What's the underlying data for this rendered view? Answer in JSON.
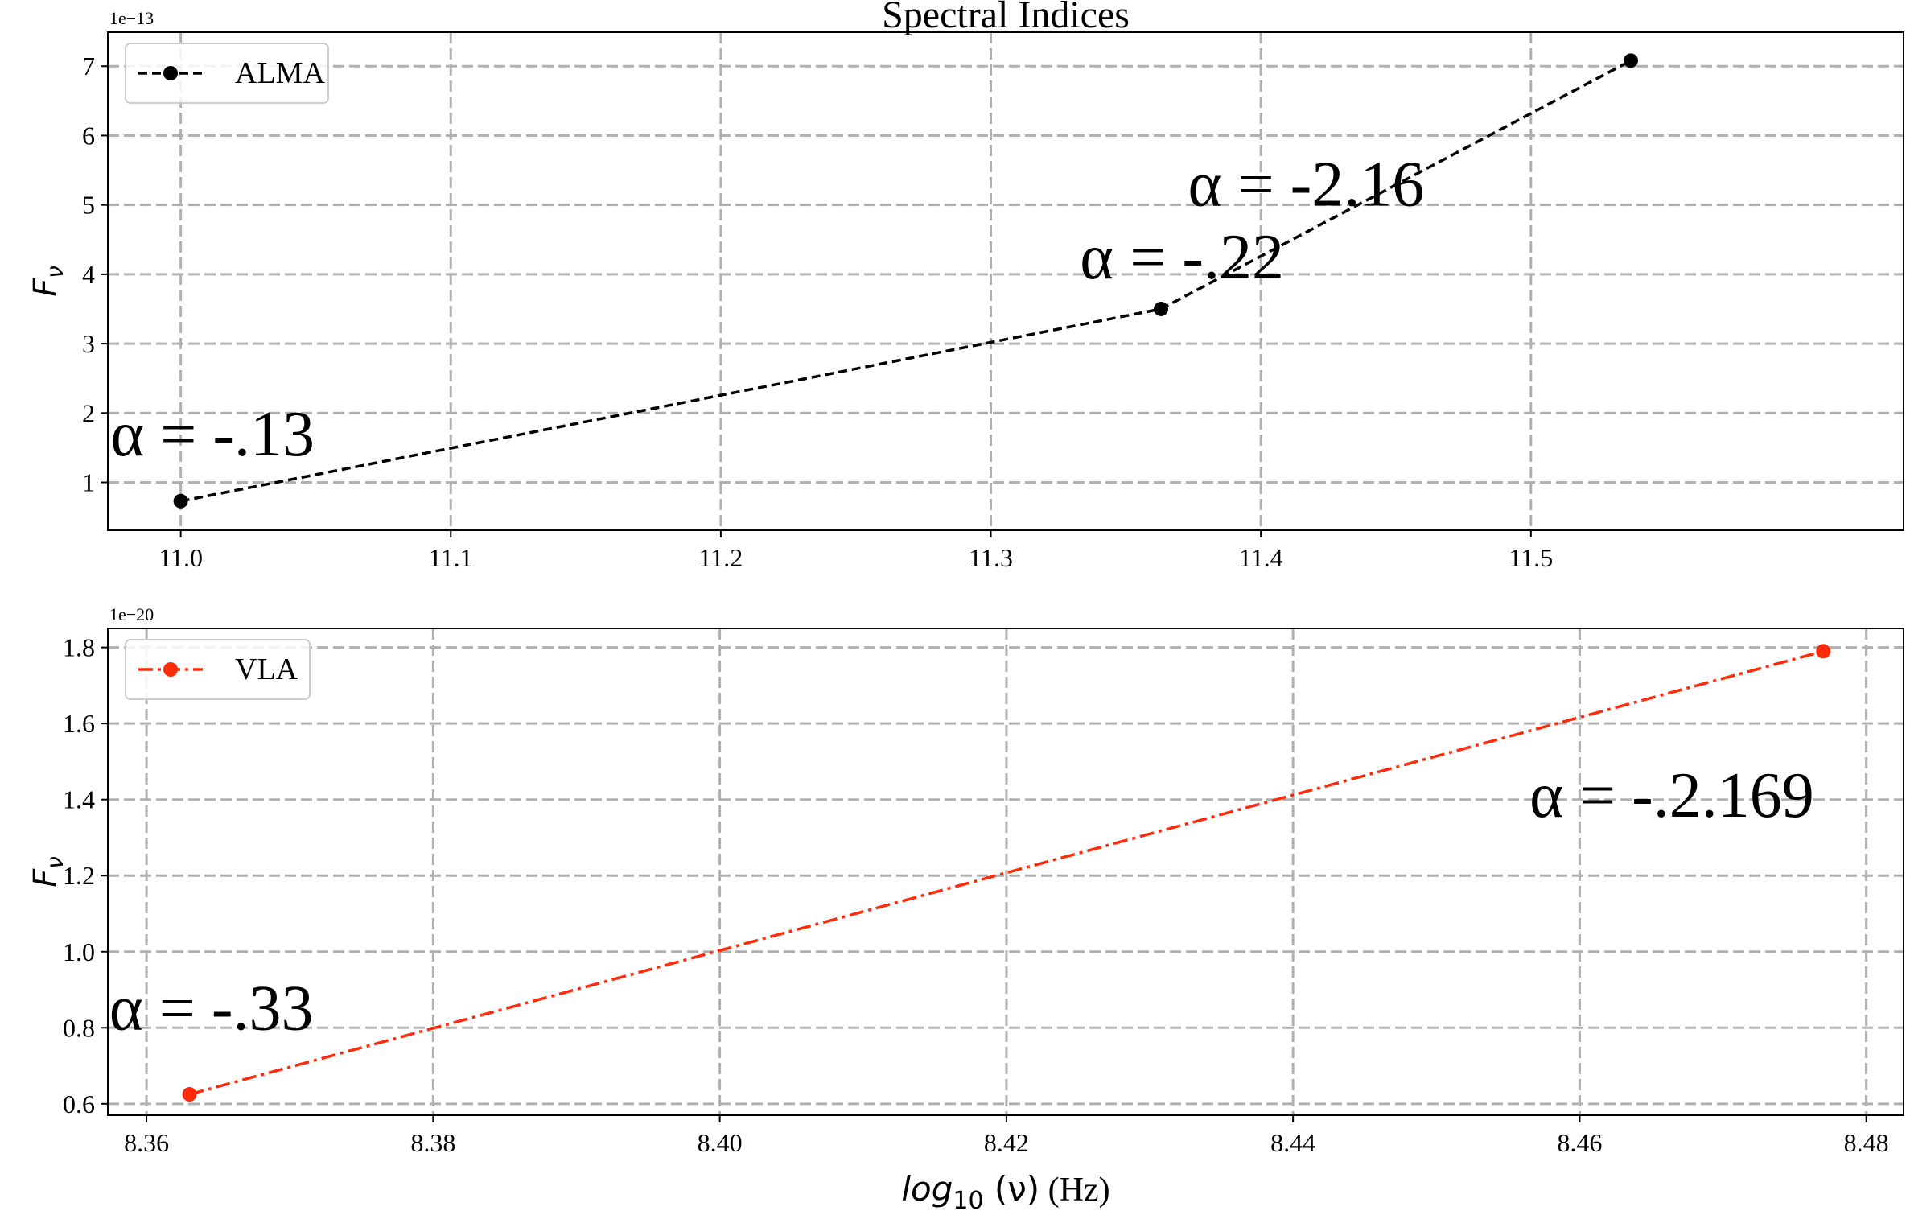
{
  "figure": {
    "title": "Spectral Indices"
  },
  "chart_data": [
    {
      "type": "line",
      "xlabel": "",
      "ylabel": "F_ν",
      "ylabel_main": "F",
      "ylabel_sub": "ν",
      "offset_text": "1e−13",
      "xlim": [
        10.973,
        11.638
      ],
      "ylim": [
        0.31,
        7.49
      ],
      "scale": 1e-13,
      "xticks": [
        11.0,
        11.1,
        11.2,
        11.3,
        11.4,
        11.5
      ],
      "xtick_labels": [
        "11.0",
        "11.1",
        "11.2",
        "11.3",
        "11.4",
        "11.5"
      ],
      "yticks": [
        1,
        2,
        3,
        4,
        5,
        6,
        7
      ],
      "ytick_labels": [
        "1",
        "2",
        "3",
        "4",
        "5",
        "6",
        "7"
      ],
      "grid": true,
      "legend_position": "top-left",
      "series": [
        {
          "name": "ALMA",
          "color": "#000000",
          "linestyle": "dashed",
          "marker": "circle",
          "x": [
            11.0,
            11.363,
            11.537
          ],
          "y": [
            0.73,
            3.5,
            7.08
          ]
        }
      ],
      "annotations": [
        {
          "text": "α = -.13",
          "x": 10.974,
          "y": 1.39
        },
        {
          "text": "α = -.22",
          "x": 11.333,
          "y": 3.94
        },
        {
          "text": "α = -2.16",
          "x": 11.373,
          "y": 4.99
        }
      ]
    },
    {
      "type": "line",
      "xlabel": "log_10 (ν) (Hz)",
      "xlabel_main": "log",
      "xlabel_sub": "10",
      "xlabel_nu": " (ν)",
      "xlabel_unit": " (Hz)",
      "ylabel": "F_ν",
      "ylabel_main": "F",
      "ylabel_sub": "ν",
      "offset_text": "1e−20",
      "xlim": [
        8.3573,
        8.4826
      ],
      "ylim": [
        0.57,
        1.85
      ],
      "scale": 1e-20,
      "xticks": [
        8.36,
        8.38,
        8.4,
        8.42,
        8.44,
        8.46,
        8.48
      ],
      "xtick_labels": [
        "8.36",
        "8.38",
        "8.40",
        "8.42",
        "8.44",
        "8.46",
        "8.48"
      ],
      "yticks": [
        0.6,
        0.8,
        1.0,
        1.2,
        1.4,
        1.6,
        1.8
      ],
      "ytick_labels": [
        "0.6",
        "0.8",
        "1.0",
        "1.2",
        "1.4",
        "1.6",
        "1.8"
      ],
      "grid": true,
      "legend_position": "top-left",
      "series": [
        {
          "name": "VLA",
          "color": "#ff2a0a",
          "linestyle": "dashdot",
          "marker": "circle",
          "x": [
            8.363,
            8.477
          ],
          "y": [
            0.625,
            1.79
          ]
        }
      ],
      "annotations": [
        {
          "text": "α = -.33",
          "x": 8.3574,
          "y": 0.795
        },
        {
          "text": "α = -.2.169",
          "x": 8.4565,
          "y": 1.355
        }
      ]
    }
  ]
}
